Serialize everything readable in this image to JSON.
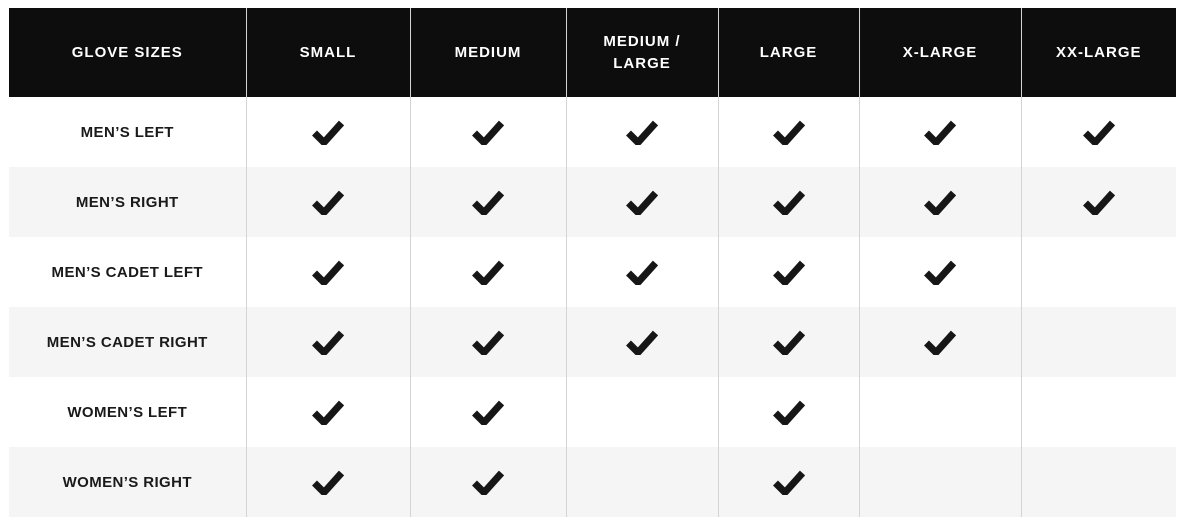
{
  "table": {
    "title": "GLOVE SIZES",
    "header": {
      "label": "GLOVE SIZES",
      "columns": [
        "SMALL",
        "MEDIUM",
        "MEDIUM / LARGE",
        "LARGE",
        "X-LARGE",
        "XX-LARGE"
      ]
    },
    "rows": [
      {
        "label": "MEN’S LEFT",
        "checks": [
          true,
          true,
          true,
          true,
          true,
          true
        ]
      },
      {
        "label": "MEN’S RIGHT",
        "checks": [
          true,
          true,
          true,
          true,
          true,
          true
        ]
      },
      {
        "label": "MEN’S CADET LEFT",
        "checks": [
          true,
          true,
          true,
          true,
          true,
          false
        ]
      },
      {
        "label": "MEN’S CADET RIGHT",
        "checks": [
          true,
          true,
          true,
          true,
          true,
          false
        ]
      },
      {
        "label": "WOMEN’S LEFT",
        "checks": [
          true,
          true,
          false,
          true,
          false,
          false
        ]
      },
      {
        "label": "WOMEN’S RIGHT",
        "checks": [
          true,
          true,
          false,
          true,
          false,
          false
        ]
      }
    ],
    "colors": {
      "header_bg": "#0d0d0d",
      "header_text": "#ffffff",
      "row_bg": "#ffffff",
      "row_alt_bg": "#f5f5f5",
      "divider": "#d4d4d4",
      "label_text": "#1a1a1a",
      "check": "#161616"
    },
    "icons": {
      "check": "checkmark-icon"
    },
    "layout_note_free": null
  }
}
